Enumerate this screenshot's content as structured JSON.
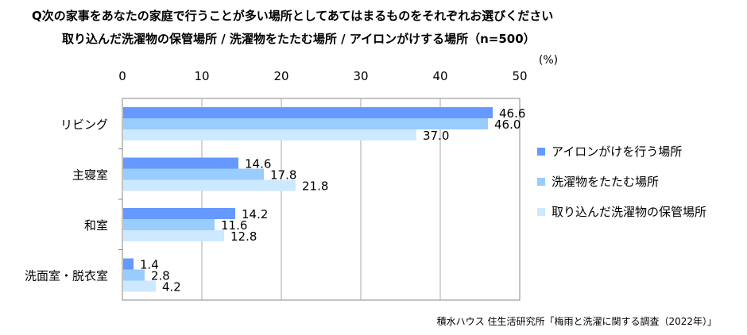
{
  "chart_data": {
    "type": "bar",
    "orientation": "horizontal",
    "title": "Q次の家事をあなたの家庭で行うことが多い場所としてあてはまるものをそれぞれお選びください",
    "subtitle": "取り込んだ洗濯物の保管場所 / 洗濯物をたたむ場所 / アイロンがけする場所（n=500）",
    "unit_label": "(%)",
    "xlim": [
      0,
      50
    ],
    "xticks": [
      "0",
      "10",
      "20",
      "30",
      "40",
      "50"
    ],
    "grid": true,
    "legend_position": "right",
    "categories": [
      "リビング",
      "主寝室",
      "和室",
      "洗面室・脱衣室"
    ],
    "series": [
      {
        "name": "アイロンがけを行う場所",
        "color": "#6699ff",
        "values": [
          46.6,
          14.6,
          14.2,
          1.4
        ]
      },
      {
        "name": "洗濯物をたたむ場所",
        "color": "#99ccff",
        "values": [
          46.0,
          17.8,
          11.6,
          2.8
        ]
      },
      {
        "name": "取り込んだ洗濯物の保管場所",
        "color": "#cce9ff",
        "values": [
          37.0,
          21.8,
          12.8,
          4.2
        ]
      }
    ],
    "source": "積水ハウス 住生活研究所「梅雨と洗濯に関する調査（2022年）」"
  }
}
